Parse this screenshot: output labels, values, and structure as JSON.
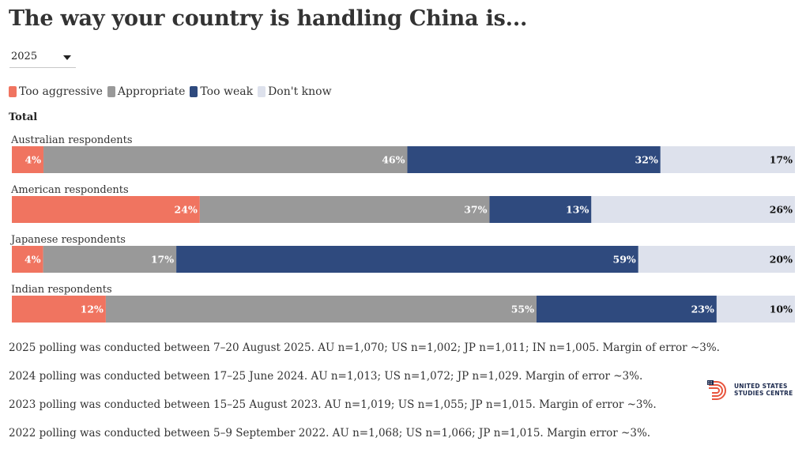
{
  "title": "The way your country is handling China is...",
  "year_select": {
    "value": "2025"
  },
  "group_label": "Total",
  "colors": {
    "too_aggressive": "#f07460",
    "appropriate": "#999999",
    "too_weak": "#2f4a7e",
    "dont_know": "#dde1ec"
  },
  "chart_data": {
    "type": "bar",
    "orientation": "horizontal",
    "stacked": true,
    "unit": "%",
    "title": "The way your country is handling China is...",
    "categories": [
      "Australian respondents",
      "American respondents",
      "Japanese respondents",
      "Indian respondents"
    ],
    "series": [
      {
        "name": "Too aggressive",
        "color_key": "too_aggressive",
        "label_color": "#ffffff",
        "values": [
          4,
          24,
          4,
          12
        ]
      },
      {
        "name": "Appropriate",
        "color_key": "appropriate",
        "label_color": "#ffffff",
        "values": [
          46,
          37,
          17,
          55
        ]
      },
      {
        "name": "Too weak",
        "color_key": "too_weak",
        "label_color": "#ffffff",
        "values": [
          32,
          13,
          59,
          23
        ]
      },
      {
        "name": "Don't know",
        "color_key": "dont_know",
        "label_color": "#111111",
        "values": [
          17,
          26,
          20,
          10
        ]
      }
    ],
    "legend_position": "top-left"
  },
  "notes": [
    "2025 polling was conducted between 7–20 August 2025. AU n=1,070; US n=1,002; JP n=1,011; IN n=1,005. Margin of error ~3%.",
    "2024 polling was conducted between 17–25 June 2024. AU n=1,013; US n=1,072; JP n=1,029. Margin of error ~3%.",
    "2023 polling was conducted between 15–25 August 2023. AU n=1,019; US n=1,055; JP n=1,015. Margin of error ~3%.",
    "2022 polling was conducted between 5–9 September 2022. AU n=1,068; US n=1,066; JP n=1,015. Margin error ~3%."
  ],
  "logo": {
    "line1": "UNITED STATES",
    "line2": "STUDIES CENTRE"
  }
}
